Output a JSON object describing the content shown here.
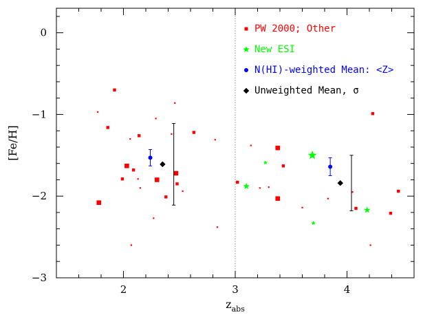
{
  "chart_data": {
    "type": "scatter",
    "xlabel": "z",
    "xlabel_sub": "abs",
    "ylabel": "[Fe/H]",
    "xlim": [
      1.4,
      4.6
    ],
    "ylim": [
      -3.0,
      0.3
    ],
    "x_ticks": [
      {
        "value": 2,
        "label": "2"
      },
      {
        "value": 3,
        "label": "3"
      },
      {
        "value": 4,
        "label": "4"
      }
    ],
    "y_ticks": [
      {
        "value": 0,
        "label": "0"
      },
      {
        "value": -1,
        "label": "−1"
      },
      {
        "value": -2,
        "label": "−2"
      },
      {
        "value": -3,
        "label": "−3"
      }
    ],
    "x_minor_step": 0.2,
    "y_minor_step": 0.2,
    "divider_x": 3.0,
    "legend_position": "top-right",
    "series": [
      {
        "name": "PW 2000; Other",
        "marker": "square",
        "color": "#ff0000",
        "points": [
          {
            "x": 1.77,
            "y": -0.97,
            "s": 1
          },
          {
            "x": 1.78,
            "y": -2.08,
            "s": 3
          },
          {
            "x": 1.86,
            "y": -1.16,
            "s": 2
          },
          {
            "x": 1.92,
            "y": -0.7,
            "s": 2
          },
          {
            "x": 1.99,
            "y": -1.79,
            "s": 2
          },
          {
            "x": 2.03,
            "y": -1.63,
            "s": 3
          },
          {
            "x": 2.06,
            "y": -1.3,
            "s": 1
          },
          {
            "x": 2.07,
            "y": -2.6,
            "s": 1
          },
          {
            "x": 2.09,
            "y": -1.68,
            "s": 2
          },
          {
            "x": 2.13,
            "y": -1.79,
            "s": 1
          },
          {
            "x": 2.14,
            "y": -1.26,
            "s": 2
          },
          {
            "x": 2.15,
            "y": -1.9,
            "s": 1
          },
          {
            "x": 2.27,
            "y": -2.27,
            "s": 1
          },
          {
            "x": 2.29,
            "y": -1.05,
            "s": 1
          },
          {
            "x": 2.3,
            "y": -1.8,
            "s": 3
          },
          {
            "x": 2.38,
            "y": -2.01,
            "s": 2
          },
          {
            "x": 2.43,
            "y": -1.24,
            "s": 1
          },
          {
            "x": 2.46,
            "y": -0.86,
            "s": 1
          },
          {
            "x": 2.47,
            "y": -1.72,
            "s": 3
          },
          {
            "x": 2.48,
            "y": -1.85,
            "s": 2
          },
          {
            "x": 2.53,
            "y": -1.94,
            "s": 1
          },
          {
            "x": 2.63,
            "y": -1.22,
            "s": 2
          },
          {
            "x": 2.82,
            "y": -1.31,
            "s": 1
          },
          {
            "x": 2.84,
            "y": -2.38,
            "s": 1
          },
          {
            "x": 3.02,
            "y": -1.83,
            "s": 2
          },
          {
            "x": 3.14,
            "y": -1.38,
            "s": 1
          },
          {
            "x": 3.22,
            "y": -1.9,
            "s": 1
          },
          {
            "x": 3.3,
            "y": -1.89,
            "s": 1
          },
          {
            "x": 3.38,
            "y": -1.41,
            "s": 3
          },
          {
            "x": 3.38,
            "y": -2.03,
            "s": 3
          },
          {
            "x": 3.43,
            "y": -1.63,
            "s": 2
          },
          {
            "x": 3.6,
            "y": -2.14,
            "s": 1
          },
          {
            "x": 3.83,
            "y": -2.03,
            "s": 1
          },
          {
            "x": 4.05,
            "y": -1.95,
            "s": 1
          },
          {
            "x": 4.08,
            "y": -2.15,
            "s": 2
          },
          {
            "x": 4.21,
            "y": -2.6,
            "s": 1
          },
          {
            "x": 4.23,
            "y": -0.99,
            "s": 2
          },
          {
            "x": 4.39,
            "y": -2.21,
            "s": 2
          },
          {
            "x": 4.46,
            "y": -1.94,
            "s": 2
          }
        ]
      },
      {
        "name": "New ESI",
        "marker": "star",
        "color": "#00ff00",
        "points": [
          {
            "x": 3.1,
            "y": -1.88,
            "s": 2
          },
          {
            "x": 3.27,
            "y": -1.59,
            "s": 1
          },
          {
            "x": 3.69,
            "y": -1.5,
            "s": 3
          },
          {
            "x": 3.7,
            "y": -2.33,
            "s": 1
          },
          {
            "x": 4.18,
            "y": -2.17,
            "s": 2
          }
        ]
      },
      {
        "name": "N(HI)-weighted Mean: <Z>",
        "marker": "circle-errorbar",
        "color": "#0000ff",
        "points": [
          {
            "x": 2.24,
            "y": -1.53,
            "err": 0.1
          },
          {
            "x": 3.85,
            "y": -1.64,
            "err": 0.11
          }
        ]
      },
      {
        "name": "Unweighted Mean, σ",
        "marker": "diamond",
        "color": "#000000",
        "points": [
          {
            "x": 2.35,
            "y": -1.61
          },
          {
            "x": 3.94,
            "y": -1.84
          }
        ],
        "sigma_bars": [
          {
            "x": 2.45,
            "y": -1.61,
            "sigma": 0.5
          },
          {
            "x": 4.04,
            "y": -1.84,
            "sigma": 0.34
          }
        ]
      }
    ]
  }
}
